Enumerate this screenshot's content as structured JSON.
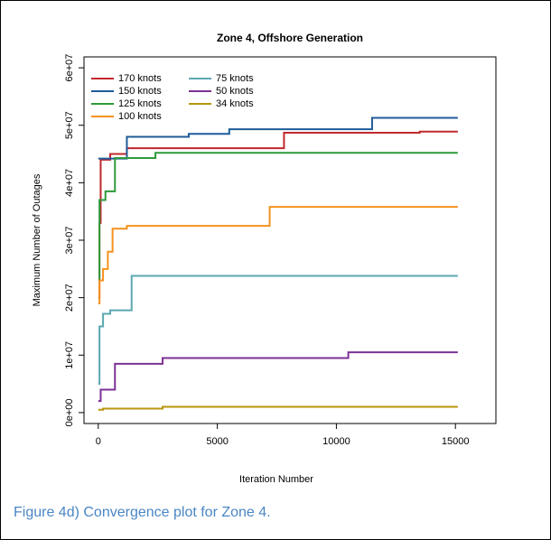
{
  "caption": "Figure 4d) Convergence plot for Zone 4.",
  "chart_data": {
    "type": "line",
    "drawstyle": "steps-post",
    "title": "Zone 4, Offshore Generation",
    "x_label": "Iteration Number",
    "y_label": "Maximum Number of Outages",
    "xlim": [
      -600,
      16700
    ],
    "ylim": [
      -1900000,
      61900000
    ],
    "xticks": [
      0,
      5000,
      10000,
      15000
    ],
    "yticks": [
      {
        "value": 0,
        "label": "0e+00"
      },
      {
        "value": 10000000,
        "label": "1e+07"
      },
      {
        "value": 20000000,
        "label": "2e+07"
      },
      {
        "value": 30000000,
        "label": "3e+07"
      },
      {
        "value": 40000000,
        "label": "4e+07"
      },
      {
        "value": 50000000,
        "label": "5e+07"
      },
      {
        "value": 60000000,
        "label": "6e+07"
      }
    ],
    "legend": "top-left",
    "series": [
      {
        "name": "170 knots",
        "color": "#c0282d",
        "x": [
          0,
          50,
          100,
          500,
          1200,
          7800,
          13500,
          15100
        ],
        "values": [
          20000000,
          33000000,
          44000000,
          45000000,
          46000000,
          48700000,
          48900000,
          48900000
        ]
      },
      {
        "name": "150 knots",
        "color": "#1f5c99",
        "x": [
          0,
          1200,
          3800,
          5500,
          11500,
          15100
        ],
        "values": [
          44200000,
          48000000,
          48500000,
          49300000,
          51300000,
          51300000
        ]
      },
      {
        "name": "125 knots",
        "color": "#2e9a3a",
        "x": [
          0,
          50,
          300,
          700,
          2400,
          15100
        ],
        "values": [
          23000000,
          37000000,
          38500000,
          44300000,
          45200000,
          45200000
        ]
      },
      {
        "name": "100 knots",
        "color": "#f5921e",
        "x": [
          0,
          50,
          200,
          400,
          600,
          1200,
          7200,
          15100
        ],
        "values": [
          19000000,
          23000000,
          25000000,
          28000000,
          32000000,
          32500000,
          35800000,
          35800000
        ]
      },
      {
        "name": "75 knots",
        "color": "#5ba8b0",
        "x": [
          0,
          50,
          200,
          500,
          1400,
          15100
        ],
        "values": [
          5000000,
          15000000,
          17200000,
          17800000,
          23800000,
          23800000
        ]
      },
      {
        "name": "50 knots",
        "color": "#7b3294",
        "x": [
          0,
          100,
          700,
          2700,
          10500,
          15100
        ],
        "values": [
          2000000,
          4000000,
          8500000,
          9500000,
          10500000,
          10500000
        ]
      },
      {
        "name": "34 knots",
        "color": "#b8960c",
        "x": [
          0,
          200,
          2700,
          15100
        ],
        "values": [
          500000,
          700000,
          1000000,
          1000000
        ]
      }
    ]
  }
}
